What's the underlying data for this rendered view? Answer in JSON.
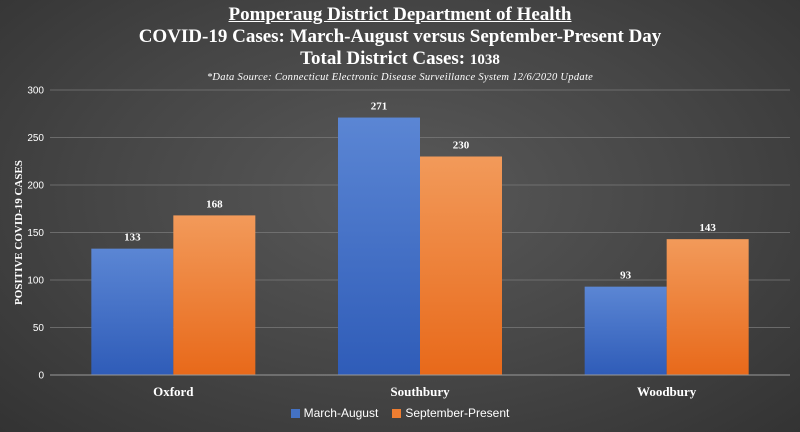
{
  "title_line1": "Pomperaug District Department of Health",
  "title_line2": "COVID-19 Cases: March-August versus September-Present Day",
  "title_line3_prefix": "Total District Cases: ",
  "title_line3_total": "1038",
  "source_note": "*Data Source: Connecticut Electronic Disease Surveillance System 12/6/2020 Update",
  "colors": {
    "march": "#4472C4",
    "sept": "#ED7D31"
  },
  "chart_data": {
    "type": "bar",
    "categories": [
      "Oxford",
      "Southbury",
      "Woodbury"
    ],
    "series": [
      {
        "name": "March-August",
        "values": [
          133,
          271,
          93
        ]
      },
      {
        "name": "September-Present",
        "values": [
          168,
          230,
          143
        ]
      }
    ],
    "ylabel": "POSITIVE COVID-19 CASES",
    "xlabel": "",
    "ylim": [
      0,
      300
    ],
    "yticks": [
      0,
      50,
      100,
      150,
      200,
      250,
      300
    ],
    "grid": true,
    "legend": "bottom"
  }
}
